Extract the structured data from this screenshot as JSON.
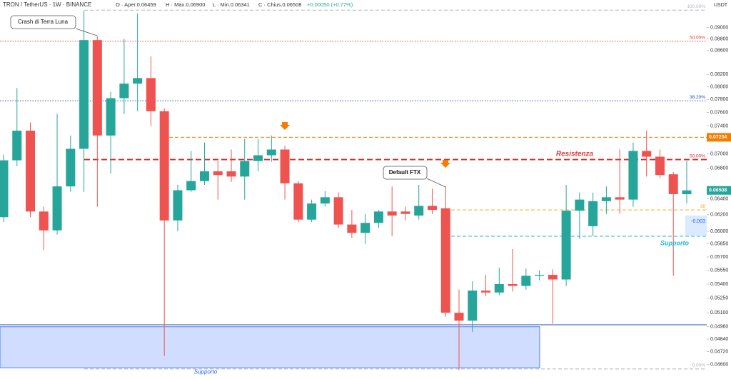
{
  "chart_data": {
    "type": "candlestick",
    "title": "TRON / TetherUS · 1W · BINANCE",
    "ohlc_legend": [
      "O · Aper.0.06459",
      "H · Max.0.06900",
      "L · Min.0.06341",
      "C · Chius.0.06508",
      "+0.00050 (+0.77%)"
    ],
    "currency": "USDT",
    "log_scale": true,
    "colors": {
      "up": "#26a69a",
      "down": "#ef5350"
    },
    "open": [
      0.0617,
      0.0691,
      0.0733,
      0.0624,
      0.0601,
      0.0656,
      0.0707,
      0.0878,
      0.0726,
      0.0782,
      0.0805,
      0.0814,
      0.0762,
      0.0613,
      0.0651,
      0.0663,
      0.0676,
      0.0676,
      0.0669,
      0.069,
      0.0698,
      0.0706,
      0.066,
      0.0614,
      0.0634,
      0.0642,
      0.0608,
      0.0598,
      0.061,
      0.0624,
      0.0624,
      0.0619,
      0.0631,
      0.0628,
      0.051,
      0.0502,
      0.0533,
      0.0531,
      0.054,
      0.0538,
      0.0549,
      0.055,
      0.0545,
      0.0625,
      0.0606,
      0.0637,
      0.0642,
      0.0639,
      0.0704,
      0.0696,
      0.0672,
      0.06459
    ],
    "high": [
      0.0699,
      0.0798,
      0.0745,
      0.063,
      0.0758,
      0.0726,
      0.0931,
      0.0885,
      0.0792,
      0.088,
      0.0926,
      0.085,
      0.0766,
      0.0658,
      0.0704,
      0.0716,
      0.069,
      0.0706,
      0.0721,
      0.0721,
      0.0726,
      0.0711,
      0.0663,
      0.0639,
      0.065,
      0.0648,
      0.0626,
      0.0621,
      0.0626,
      0.0656,
      0.063,
      0.0658,
      0.0653,
      0.0656,
      0.0534,
      0.0543,
      0.055,
      0.0558,
      0.0579,
      0.0557,
      0.0555,
      0.0556,
      0.0658,
      0.0648,
      0.0648,
      0.0656,
      0.0706,
      0.0716,
      0.0733,
      0.0706,
      0.0675,
      0.069
    ],
    "low": [
      0.0611,
      0.0683,
      0.0617,
      0.0578,
      0.0596,
      0.0649,
      0.0649,
      0.063,
      0.0673,
      0.0758,
      0.0762,
      0.074,
      0.0468,
      0.06,
      0.0649,
      0.0658,
      0.0639,
      0.0662,
      0.0639,
      0.0676,
      0.0689,
      0.0639,
      0.0611,
      0.0611,
      0.063,
      0.0604,
      0.0592,
      0.0585,
      0.0604,
      0.0594,
      0.0613,
      0.0614,
      0.0621,
      0.0506,
      0.0455,
      0.0491,
      0.0527,
      0.0528,
      0.0532,
      0.0534,
      0.0544,
      0.0499,
      0.0538,
      0.0591,
      0.0594,
      0.0621,
      0.0621,
      0.063,
      0.0669,
      0.0667,
      0.0549,
      0.06341
    ],
    "close": [
      0.0691,
      0.0733,
      0.0624,
      0.0601,
      0.0656,
      0.0707,
      0.0878,
      0.0726,
      0.0782,
      0.0805,
      0.0814,
      0.0762,
      0.0613,
      0.0651,
      0.0663,
      0.0676,
      0.0671,
      0.0669,
      0.069,
      0.0698,
      0.0706,
      0.066,
      0.0614,
      0.0634,
      0.0642,
      0.0608,
      0.0598,
      0.061,
      0.0624,
      0.0619,
      0.0621,
      0.0631,
      0.0626,
      0.051,
      0.0502,
      0.0533,
      0.0531,
      0.054,
      0.0538,
      0.0549,
      0.055,
      0.0545,
      0.0625,
      0.0639,
      0.0637,
      0.0642,
      0.0639,
      0.0704,
      0.0696,
      0.0671,
      0.0646,
      0.06508
    ],
    "ylim": [
      0.0454,
      0.0951
    ],
    "yticks": [
      {
        "value": 0.09,
        "label": "0.09000"
      },
      {
        "value": 0.088,
        "label": "0.08800"
      },
      {
        "value": 0.086,
        "label": "0.08600"
      },
      {
        "value": 0.082,
        "label": "0.08200"
      },
      {
        "value": 0.08,
        "label": "0.08000"
      },
      {
        "value": 0.078,
        "label": "0.07800"
      },
      {
        "value": 0.076,
        "label": "0.07600"
      },
      {
        "value": 0.074,
        "label": "0.07400"
      },
      {
        "value": 0.07,
        "label": "0.07000"
      },
      {
        "value": 0.068,
        "label": "0.06800"
      },
      {
        "value": 0.064,
        "label": "0.06400"
      },
      {
        "value": 0.062,
        "label": "0.06200"
      },
      {
        "value": 0.06,
        "label": "0.06000"
      },
      {
        "value": 0.0585,
        "label": "0.05850"
      },
      {
        "value": 0.057,
        "label": "0.05700"
      },
      {
        "value": 0.0555,
        "label": "0.05550"
      },
      {
        "value": 0.054,
        "label": "0.05400"
      },
      {
        "value": 0.0525,
        "label": "0.05250"
      },
      {
        "value": 0.051,
        "label": "0.05100"
      },
      {
        "value": 0.0496,
        "label": "0.04960"
      },
      {
        "value": 0.0484,
        "label": "0.04840"
      },
      {
        "value": 0.0472,
        "label": "0.04720"
      },
      {
        "value": 0.046,
        "label": "0.04600"
      }
    ],
    "levels": [
      {
        "value": 0.0932,
        "label": "100.00%",
        "color": "#b2b5be",
        "dash": "dashed"
      },
      {
        "value": 0.0876,
        "label": "50.00%",
        "color": "#e53935",
        "dash": "dotted"
      },
      {
        "value": 0.0778,
        "label": "38.20%",
        "color": "#1e4ea8",
        "dash": "dotted"
      },
      {
        "value": 0.07234,
        "color": "#f57c00",
        "dash": "dashed"
      },
      {
        "value": 0.0692,
        "label": "50.00%",
        "color": "#d32f2f",
        "dash": "bold-dashed"
      },
      {
        "value": 0.0626,
        "label": "38",
        "color": "#f5a623",
        "dash": "dashed"
      },
      {
        "value": 0.0594,
        "label": "50",
        "color": "#26b5d6",
        "dash": "dashed"
      },
      {
        "value": 0.0498,
        "color": "#1e4ea8",
        "dash": "solid"
      },
      {
        "value": 0.0456,
        "label": "0.00%",
        "color": "#b2b5be",
        "dash": "dashed"
      }
    ],
    "price_tags": [
      {
        "value": 0.07234,
        "label": "0.07234",
        "color": "#f57c00"
      },
      {
        "value": 0.06508,
        "label": "0.06508",
        "color": "#26a69a"
      }
    ],
    "zone": {
      "from": 0.0496,
      "to": 0.0457,
      "label": "Supporto"
    },
    "annotations": {
      "terra": "Crash di Terra Luna",
      "ftx": "Default FTX",
      "resistance": "Resistenza",
      "support": "Supporto",
      "measure": "-0.003"
    }
  }
}
